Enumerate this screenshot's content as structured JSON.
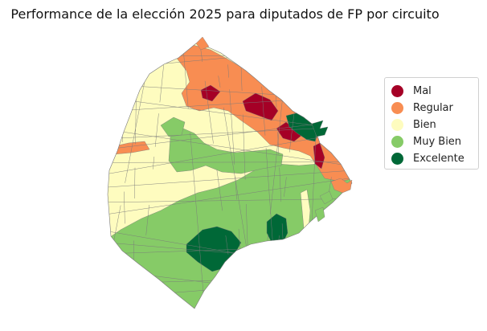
{
  "title": "Performance de la elección 2025 para diputados de FP por circuito",
  "legend": {
    "placement": "right",
    "items": [
      {
        "label": "Mal",
        "color": "#a50026"
      },
      {
        "label": "Regular",
        "color": "#f88d52"
      },
      {
        "label": "Bien",
        "color": "#fefcbf"
      },
      {
        "label": "Muy Bien",
        "color": "#86cb67"
      },
      {
        "label": "Excelente",
        "color": "#006837"
      }
    ]
  },
  "map": {
    "border_color": "#7a7a7a"
  }
}
